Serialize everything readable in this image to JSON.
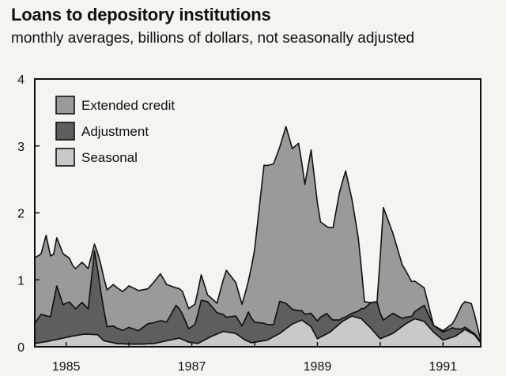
{
  "title": "Loans to depository institutions",
  "subtitle": "monthly averages, billions of dollars, not seasonally adjusted",
  "colors": {
    "extended": "#9a9a9a",
    "adjustment": "#5e5e5e",
    "seasonal": "#c9c9c9",
    "frame": "#111111",
    "background": "#f4f4f1"
  },
  "chart_data": {
    "type": "area",
    "stacked": true,
    "x_range": [
      1984.5,
      1991.6
    ],
    "ylim": [
      0,
      4
    ],
    "yticks": [
      0,
      1,
      2,
      3,
      4
    ],
    "xtick_labels": [
      {
        "x": 1985,
        "label": "1985"
      },
      {
        "x": 1987,
        "label": "1987"
      },
      {
        "x": 1989,
        "label": "1989"
      },
      {
        "x": 1991,
        "label": "1991"
      }
    ],
    "legend_position": "top-left",
    "series": [
      {
        "name": "Seasonal",
        "color_key": "seasonal",
        "points": [
          [
            1984.5,
            0.05
          ],
          [
            1984.7,
            0.08
          ],
          [
            1984.9,
            0.12
          ],
          [
            1985.1,
            0.16
          ],
          [
            1985.3,
            0.19
          ],
          [
            1985.5,
            0.18
          ],
          [
            1985.6,
            0.09
          ],
          [
            1985.8,
            0.05
          ],
          [
            1986.0,
            0.04
          ],
          [
            1986.2,
            0.04
          ],
          [
            1986.4,
            0.05
          ],
          [
            1986.6,
            0.09
          ],
          [
            1986.8,
            0.13
          ],
          [
            1986.95,
            0.07
          ],
          [
            1987.1,
            0.05
          ],
          [
            1987.3,
            0.15
          ],
          [
            1987.5,
            0.23
          ],
          [
            1987.7,
            0.2
          ],
          [
            1987.85,
            0.1
          ],
          [
            1987.95,
            0.06
          ],
          [
            1988.2,
            0.1
          ],
          [
            1988.4,
            0.2
          ],
          [
            1988.6,
            0.34
          ],
          [
            1988.75,
            0.4
          ],
          [
            1988.9,
            0.3
          ],
          [
            1989.0,
            0.12
          ],
          [
            1989.2,
            0.22
          ],
          [
            1989.4,
            0.38
          ],
          [
            1989.55,
            0.46
          ],
          [
            1989.7,
            0.42
          ],
          [
            1989.85,
            0.28
          ],
          [
            1990.0,
            0.12
          ],
          [
            1990.2,
            0.2
          ],
          [
            1990.4,
            0.34
          ],
          [
            1990.55,
            0.42
          ],
          [
            1990.7,
            0.38
          ],
          [
            1990.85,
            0.22
          ],
          [
            1991.0,
            0.1
          ],
          [
            1991.2,
            0.16
          ],
          [
            1991.35,
            0.26
          ],
          [
            1991.5,
            0.18
          ],
          [
            1991.6,
            0.06
          ]
        ]
      },
      {
        "name": "Adjustment",
        "color_key": "adjustment",
        "points": [
          [
            1984.5,
            0.3
          ],
          [
            1984.6,
            0.42
          ],
          [
            1984.75,
            0.36
          ],
          [
            1984.85,
            0.8
          ],
          [
            1984.95,
            0.5
          ],
          [
            1985.05,
            0.52
          ],
          [
            1985.15,
            0.4
          ],
          [
            1985.25,
            0.48
          ],
          [
            1985.35,
            0.38
          ],
          [
            1985.45,
            1.25
          ],
          [
            1985.55,
            0.7
          ],
          [
            1985.65,
            0.22
          ],
          [
            1985.75,
            0.25
          ],
          [
            1985.9,
            0.2
          ],
          [
            1986.0,
            0.25
          ],
          [
            1986.15,
            0.2
          ],
          [
            1986.3,
            0.3
          ],
          [
            1986.5,
            0.32
          ],
          [
            1986.6,
            0.28
          ],
          [
            1986.75,
            0.5
          ],
          [
            1986.85,
            0.38
          ],
          [
            1986.95,
            0.2
          ],
          [
            1987.05,
            0.28
          ],
          [
            1987.15,
            0.62
          ],
          [
            1987.25,
            0.55
          ],
          [
            1987.4,
            0.32
          ],
          [
            1987.55,
            0.22
          ],
          [
            1987.7,
            0.26
          ],
          [
            1987.8,
            0.18
          ],
          [
            1987.9,
            0.44
          ],
          [
            1988.0,
            0.3
          ],
          [
            1988.15,
            0.26
          ],
          [
            1988.3,
            0.18
          ],
          [
            1988.4,
            0.48
          ],
          [
            1988.5,
            0.38
          ],
          [
            1988.6,
            0.22
          ],
          [
            1988.7,
            0.16
          ],
          [
            1988.8,
            0.12
          ],
          [
            1988.9,
            0.2
          ],
          [
            1989.05,
            0.3
          ],
          [
            1989.15,
            0.3
          ],
          [
            1989.25,
            0.14
          ],
          [
            1989.35,
            0.06
          ],
          [
            1989.45,
            0.04
          ],
          [
            1989.55,
            0.04
          ],
          [
            1989.65,
            0.1
          ],
          [
            1989.75,
            0.2
          ],
          [
            1989.85,
            0.38
          ],
          [
            1989.95,
            0.5
          ],
          [
            1990.05,
            0.26
          ],
          [
            1990.2,
            0.3
          ],
          [
            1990.35,
            0.12
          ],
          [
            1990.5,
            0.06
          ],
          [
            1990.7,
            0.24
          ],
          [
            1990.85,
            0.1
          ],
          [
            1991.0,
            0.12
          ],
          [
            1991.15,
            0.14
          ],
          [
            1991.3,
            0.04
          ],
          [
            1991.45,
            0.02
          ],
          [
            1991.6,
            0.02
          ]
        ]
      },
      {
        "name": "Extended credit",
        "color_key": "extended",
        "points": [
          [
            1984.5,
            0.98
          ],
          [
            1984.6,
            0.9
          ],
          [
            1984.68,
            1.2
          ],
          [
            1984.8,
            0.7
          ],
          [
            1984.95,
            0.76
          ],
          [
            1985.1,
            0.6
          ],
          [
            1985.25,
            0.6
          ],
          [
            1985.35,
            0.6
          ],
          [
            1985.45,
            0.1
          ],
          [
            1985.55,
            0.4
          ],
          [
            1985.65,
            0.55
          ],
          [
            1985.75,
            0.62
          ],
          [
            1985.9,
            0.58
          ],
          [
            1986.0,
            0.62
          ],
          [
            1986.15,
            0.6
          ],
          [
            1986.3,
            0.52
          ],
          [
            1986.5,
            0.7
          ],
          [
            1986.6,
            0.56
          ],
          [
            1986.75,
            0.26
          ],
          [
            1986.85,
            0.34
          ],
          [
            1986.95,
            0.3
          ],
          [
            1987.05,
            0.3
          ],
          [
            1987.15,
            0.38
          ],
          [
            1987.25,
            0.1
          ],
          [
            1987.4,
            0.14
          ],
          [
            1987.55,
            0.7
          ],
          [
            1987.7,
            0.5
          ],
          [
            1987.8,
            0.32
          ],
          [
            1987.9,
            0.46
          ],
          [
            1988.0,
            1.08
          ],
          [
            1988.15,
            2.36
          ],
          [
            1988.3,
            2.4
          ],
          [
            1988.4,
            2.3
          ],
          [
            1988.5,
            2.64
          ],
          [
            1988.6,
            2.4
          ],
          [
            1988.7,
            2.5
          ],
          [
            1988.8,
            1.94
          ],
          [
            1988.9,
            2.44
          ],
          [
            1989.05,
            1.42
          ],
          [
            1989.15,
            1.3
          ],
          [
            1989.25,
            1.38
          ],
          [
            1989.35,
            1.9
          ],
          [
            1989.45,
            2.18
          ],
          [
            1989.55,
            1.7
          ],
          [
            1989.65,
            1.1
          ],
          [
            1989.75,
            0.1
          ],
          [
            1989.85,
            0.0
          ],
          [
            1989.95,
            0.0
          ],
          [
            1990.05,
            1.68
          ],
          [
            1990.2,
            1.2
          ],
          [
            1990.35,
            0.8
          ],
          [
            1990.5,
            0.52
          ],
          [
            1990.7,
            0.26
          ],
          [
            1990.85,
            0.0
          ],
          [
            1991.0,
            0.02
          ],
          [
            1991.15,
            0.06
          ],
          [
            1991.3,
            0.36
          ],
          [
            1991.45,
            0.42
          ],
          [
            1991.6,
            0.02
          ]
        ]
      }
    ]
  }
}
